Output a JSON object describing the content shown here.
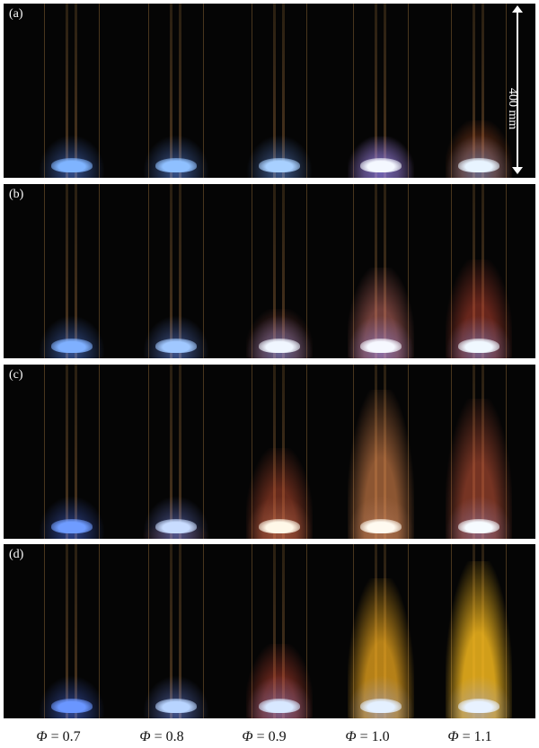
{
  "panels": [
    {
      "label": "(a)",
      "flames": [
        {
          "core": "#7fb4ff",
          "glow": "rgba(90,140,255,0.55)",
          "plume": "rgba(0,0,0,0)",
          "plume_level": 0.0
        },
        {
          "core": "#8fc0ff",
          "glow": "rgba(100,150,255,0.55)",
          "plume": "rgba(0,0,0,0)",
          "plume_level": 0.0
        },
        {
          "core": "#a8d0ff",
          "glow": "rgba(110,160,255,0.55)",
          "plume": "rgba(0,0,0,0)",
          "plume_level": 0.0
        },
        {
          "core": "#f4f8ff",
          "glow": "rgba(150,140,255,0.6)",
          "plume": "rgba(170,120,200,0.35)",
          "plume_level": 0.25
        },
        {
          "core": "#e8f4ff",
          "glow": "rgba(120,170,255,0.5)",
          "plume": "rgba(200,90,40,0.45)",
          "plume_level": 0.35
        }
      ]
    },
    {
      "label": "(b)",
      "flames": [
        {
          "core": "#7fb0ff",
          "glow": "rgba(90,140,255,0.55)",
          "plume": "rgba(0,0,0,0)",
          "plume_level": 0.0
        },
        {
          "core": "#a0c8ff",
          "glow": "rgba(110,150,255,0.55)",
          "plume": "rgba(0,0,0,0)",
          "plume_level": 0.05
        },
        {
          "core": "#f0f6ff",
          "glow": "rgba(140,160,255,0.55)",
          "plume": "rgba(190,90,80,0.35)",
          "plume_level": 0.3
        },
        {
          "core": "#f6f8ff",
          "glow": "rgba(160,150,255,0.55)",
          "plume": "rgba(220,120,110,0.5)",
          "plume_level": 0.55
        },
        {
          "core": "#f0f8ff",
          "glow": "rgba(140,160,255,0.5)",
          "plume": "rgba(200,70,50,0.5)",
          "plume_level": 0.6
        }
      ]
    },
    {
      "label": "(c)",
      "flames": [
        {
          "core": "#6f9cff",
          "glow": "rgba(80,120,255,0.55)",
          "plume": "rgba(0,0,0,0)",
          "plume_level": 0.0
        },
        {
          "core": "#c8dcff",
          "glow": "rgba(130,150,255,0.55)",
          "plume": "rgba(120,50,40,0.25)",
          "plume_level": 0.1
        },
        {
          "core": "#fff8e8",
          "glow": "rgba(200,120,90,0.55)",
          "plume": "rgba(200,80,50,0.5)",
          "plume_level": 0.55
        },
        {
          "core": "#fffaf0",
          "glow": "rgba(190,130,100,0.55)",
          "plume": "rgba(230,140,80,0.6)",
          "plume_level": 0.9
        },
        {
          "core": "#f6fbff",
          "glow": "rgba(160,140,200,0.5)",
          "plume": "rgba(210,90,60,0.55)",
          "plume_level": 0.85
        }
      ]
    },
    {
      "label": "(d)",
      "flames": [
        {
          "core": "#6a96ff",
          "glow": "rgba(80,120,255,0.55)",
          "plume": "rgba(0,0,0,0)",
          "plume_level": 0.0
        },
        {
          "core": "#b8d4ff",
          "glow": "rgba(120,150,255,0.55)",
          "plume": "rgba(0,0,0,0)",
          "plume_level": 0.05
        },
        {
          "core": "#d8e8ff",
          "glow": "rgba(150,140,220,0.55)",
          "plume": "rgba(200,70,50,0.5)",
          "plume_level": 0.45
        },
        {
          "core": "#e4f0ff",
          "glow": "rgba(150,170,255,0.5)",
          "plume": "rgba(240,170,30,0.75)",
          "plume_level": 0.85
        },
        {
          "core": "#e8f2ff",
          "glow": "rgba(150,170,255,0.5)",
          "plume": "rgba(245,185,30,0.85)",
          "plume_level": 0.95
        }
      ]
    }
  ],
  "scale_label": "400 mm",
  "phi_symbol": "Φ",
  "phi_values": [
    "= 0.7",
    "= 0.8",
    "= 0.9",
    "= 1.0",
    "= 1.1"
  ]
}
